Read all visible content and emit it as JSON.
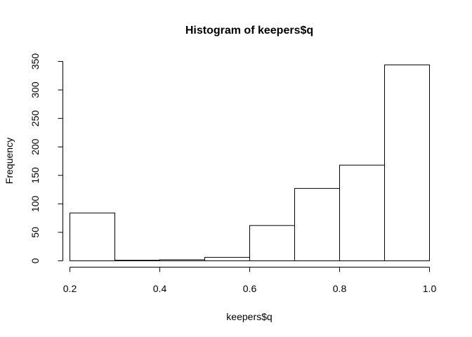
{
  "chart_data": {
    "type": "bar",
    "subtype": "histogram",
    "title": "Histogram of keepers$q",
    "xlabel": "keepers$q",
    "ylabel": "Frequency",
    "bins": [
      {
        "start": 0.2,
        "end": 0.3,
        "count": 84
      },
      {
        "start": 0.3,
        "end": 0.4,
        "count": 1
      },
      {
        "start": 0.4,
        "end": 0.5,
        "count": 2
      },
      {
        "start": 0.5,
        "end": 0.6,
        "count": 6
      },
      {
        "start": 0.6,
        "end": 0.7,
        "count": 62
      },
      {
        "start": 0.7,
        "end": 0.8,
        "count": 127
      },
      {
        "start": 0.8,
        "end": 0.9,
        "count": 168
      },
      {
        "start": 0.9,
        "end": 1.0,
        "count": 344
      }
    ],
    "xlim": [
      0.2,
      1.0
    ],
    "ylim": [
      0,
      350
    ],
    "x_ticks": [
      "0.2",
      "0.4",
      "0.6",
      "0.8",
      "1.0"
    ],
    "y_ticks": [
      "0",
      "50",
      "100",
      "150",
      "200",
      "250",
      "300",
      "350"
    ],
    "grid": false,
    "colors": {
      "bar_fill": "#ffffff",
      "bar_stroke": "#000000"
    }
  }
}
